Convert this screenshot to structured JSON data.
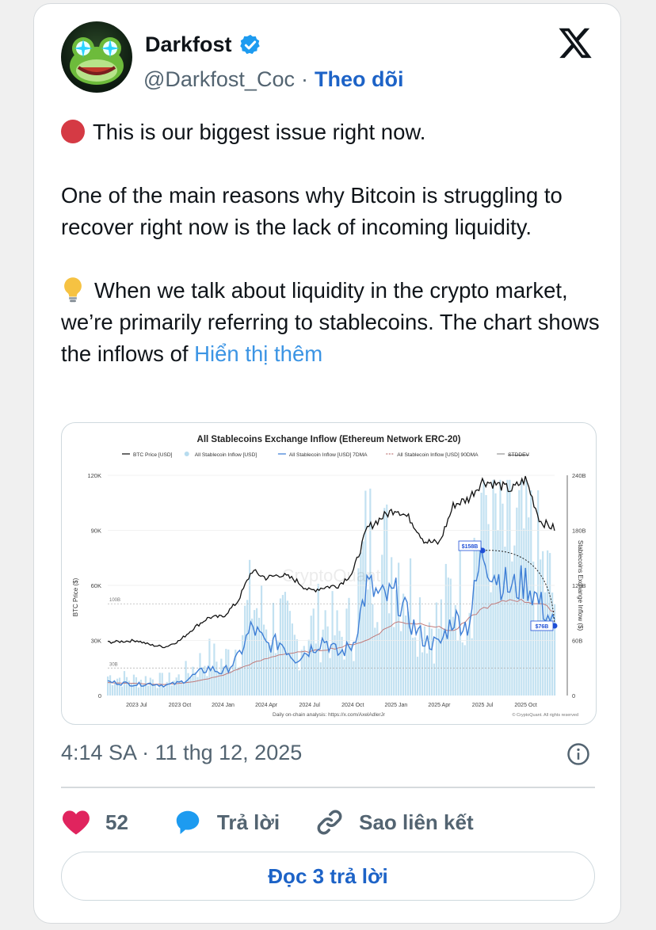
{
  "author": {
    "name": "Darkfost",
    "handle": "@Darkfost_Coc",
    "separator": "·",
    "follow_label": "Theo dõi"
  },
  "tweet": {
    "line1": "This is our biggest issue right now.",
    "para2": "One of the main reasons why Bitcoin is struggling to recover right now is the lack of incoming liquidity.",
    "para3": "When we talk about liquidity in the crypto market, we’re primarily referring to stablecoins. The chart shows the inflows of",
    "show_more": "Hiển thị thêm"
  },
  "timestamp": "4:14 SA · 11 thg 12, 2025",
  "actions": {
    "like_count": "52",
    "reply_label": "Trả lời",
    "copy_link_label": "Sao liên kết"
  },
  "read_replies_label": "Đọc 3 trả lời",
  "colors": {
    "follow_blue": "#1d63c7",
    "link_blue": "#3b94e4",
    "like_pink": "#e0245e",
    "reply_blue": "#1d9bf0",
    "inflow_bar": "#b7dcef",
    "inflow_7dma": "#3f7fd6",
    "inflow_90dma": "#c07a7a"
  },
  "chart_data": {
    "type": "line",
    "title": "All Stablecoins Exchange Inflow (Ethereum Network ERC-20)",
    "legend": [
      "BTC Price [USD]",
      "All Stablecoin Inflow [USD]",
      "All Stablecoin Inflow [USD] 7DMA",
      "All Stablecoin Inflow [USD] 90DMA",
      "STDDEV"
    ],
    "ylabel_left": "BTC Price ($)",
    "ylabel_right": "Stablecoins Exchange Inflow ($)",
    "y_left_ticks": [
      "0",
      "30K",
      "60K",
      "90K",
      "120K"
    ],
    "y_right_ticks": [
      "0",
      "60B",
      "120B",
      "180B",
      "240B"
    ],
    "y_left_range": [
      0,
      120000
    ],
    "y_right_range": [
      0,
      240000000000
    ],
    "x_ticks": [
      "2023 Jul",
      "2023 Oct",
      "2024 Jan",
      "2024 Apr",
      "2024 Jul",
      "2024 Oct",
      "2025 Jan",
      "2025 Apr",
      "2025 Jul",
      "2025 Oct"
    ],
    "reference_lines": [
      "100B",
      "30B"
    ],
    "annotations": [
      "$158B",
      "$76B"
    ],
    "footer": "Daily on-chain analysis: https://x.com/AxelAdlerJr",
    "copyright": "© CryptoQuant. All rights reserved",
    "watermark": "CryptoQuant",
    "btc_price": [
      [
        "2023-05",
        29000
      ],
      [
        "2023-07",
        30000
      ],
      [
        "2023-08",
        27500
      ],
      [
        "2023-09",
        26500
      ],
      [
        "2023-10",
        30000
      ],
      [
        "2023-11",
        37000
      ],
      [
        "2023-12",
        42500
      ],
      [
        "2024-01",
        43000
      ],
      [
        "2024-02",
        51000
      ],
      [
        "2024-03",
        68000
      ],
      [
        "2024-04",
        64000
      ],
      [
        "2024-05",
        66000
      ],
      [
        "2024-06",
        63000
      ],
      [
        "2024-07",
        57000
      ],
      [
        "2024-08",
        59000
      ],
      [
        "2024-09",
        60000
      ],
      [
        "2024-10",
        67000
      ],
      [
        "2024-11",
        91000
      ],
      [
        "2024-12",
        97000
      ],
      [
        "2025-01",
        102000
      ],
      [
        "2025-02",
        96000
      ],
      [
        "2025-03",
        84000
      ],
      [
        "2025-04",
        83000
      ],
      [
        "2025-05",
        104000
      ],
      [
        "2025-06",
        107000
      ],
      [
        "2025-07",
        117000
      ],
      [
        "2025-08",
        115000
      ],
      [
        "2025-09",
        112000
      ],
      [
        "2025-10",
        118000
      ],
      [
        "2025-11",
        95000
      ],
      [
        "2025-12",
        91000
      ]
    ],
    "inflow_7dma_billions": [
      [
        "2023-05",
        15
      ],
      [
        "2023-07",
        12
      ],
      [
        "2023-08",
        13
      ],
      [
        "2023-09",
        11
      ],
      [
        "2023-10",
        14
      ],
      [
        "2023-11",
        22
      ],
      [
        "2023-12",
        30
      ],
      [
        "2024-01",
        25
      ],
      [
        "2024-02",
        40
      ],
      [
        "2024-03",
        75
      ],
      [
        "2024-04",
        55
      ],
      [
        "2024-05",
        58
      ],
      [
        "2024-06",
        40
      ],
      [
        "2024-07",
        50
      ],
      [
        "2024-08",
        62
      ],
      [
        "2024-09",
        45
      ],
      [
        "2024-10",
        55
      ],
      [
        "2024-11",
        120
      ],
      [
        "2024-12",
        105
      ],
      [
        "2025-01",
        110
      ],
      [
        "2025-02",
        80
      ],
      [
        "2025-03",
        60
      ],
      [
        "2025-04",
        55
      ],
      [
        "2025-05",
        85
      ],
      [
        "2025-06",
        75
      ],
      [
        "2025-07",
        158
      ],
      [
        "2025-08",
        130
      ],
      [
        "2025-09",
        115
      ],
      [
        "2025-10",
        125
      ],
      [
        "2025-11",
        100
      ],
      [
        "2025-12",
        76
      ]
    ],
    "inflow_90dma_billions": [
      [
        "2023-05",
        14
      ],
      [
        "2023-07",
        13
      ],
      [
        "2023-09",
        12
      ],
      [
        "2023-11",
        15
      ],
      [
        "2024-01",
        22
      ],
      [
        "2024-03",
        35
      ],
      [
        "2024-05",
        45
      ],
      [
        "2024-07",
        48
      ],
      [
        "2024-09",
        52
      ],
      [
        "2024-11",
        60
      ],
      [
        "2025-01",
        80
      ],
      [
        "2025-03",
        78
      ],
      [
        "2025-05",
        70
      ],
      [
        "2025-07",
        95
      ],
      [
        "2025-09",
        105
      ],
      [
        "2025-11",
        100
      ],
      [
        "2025-12",
        92
      ]
    ]
  }
}
